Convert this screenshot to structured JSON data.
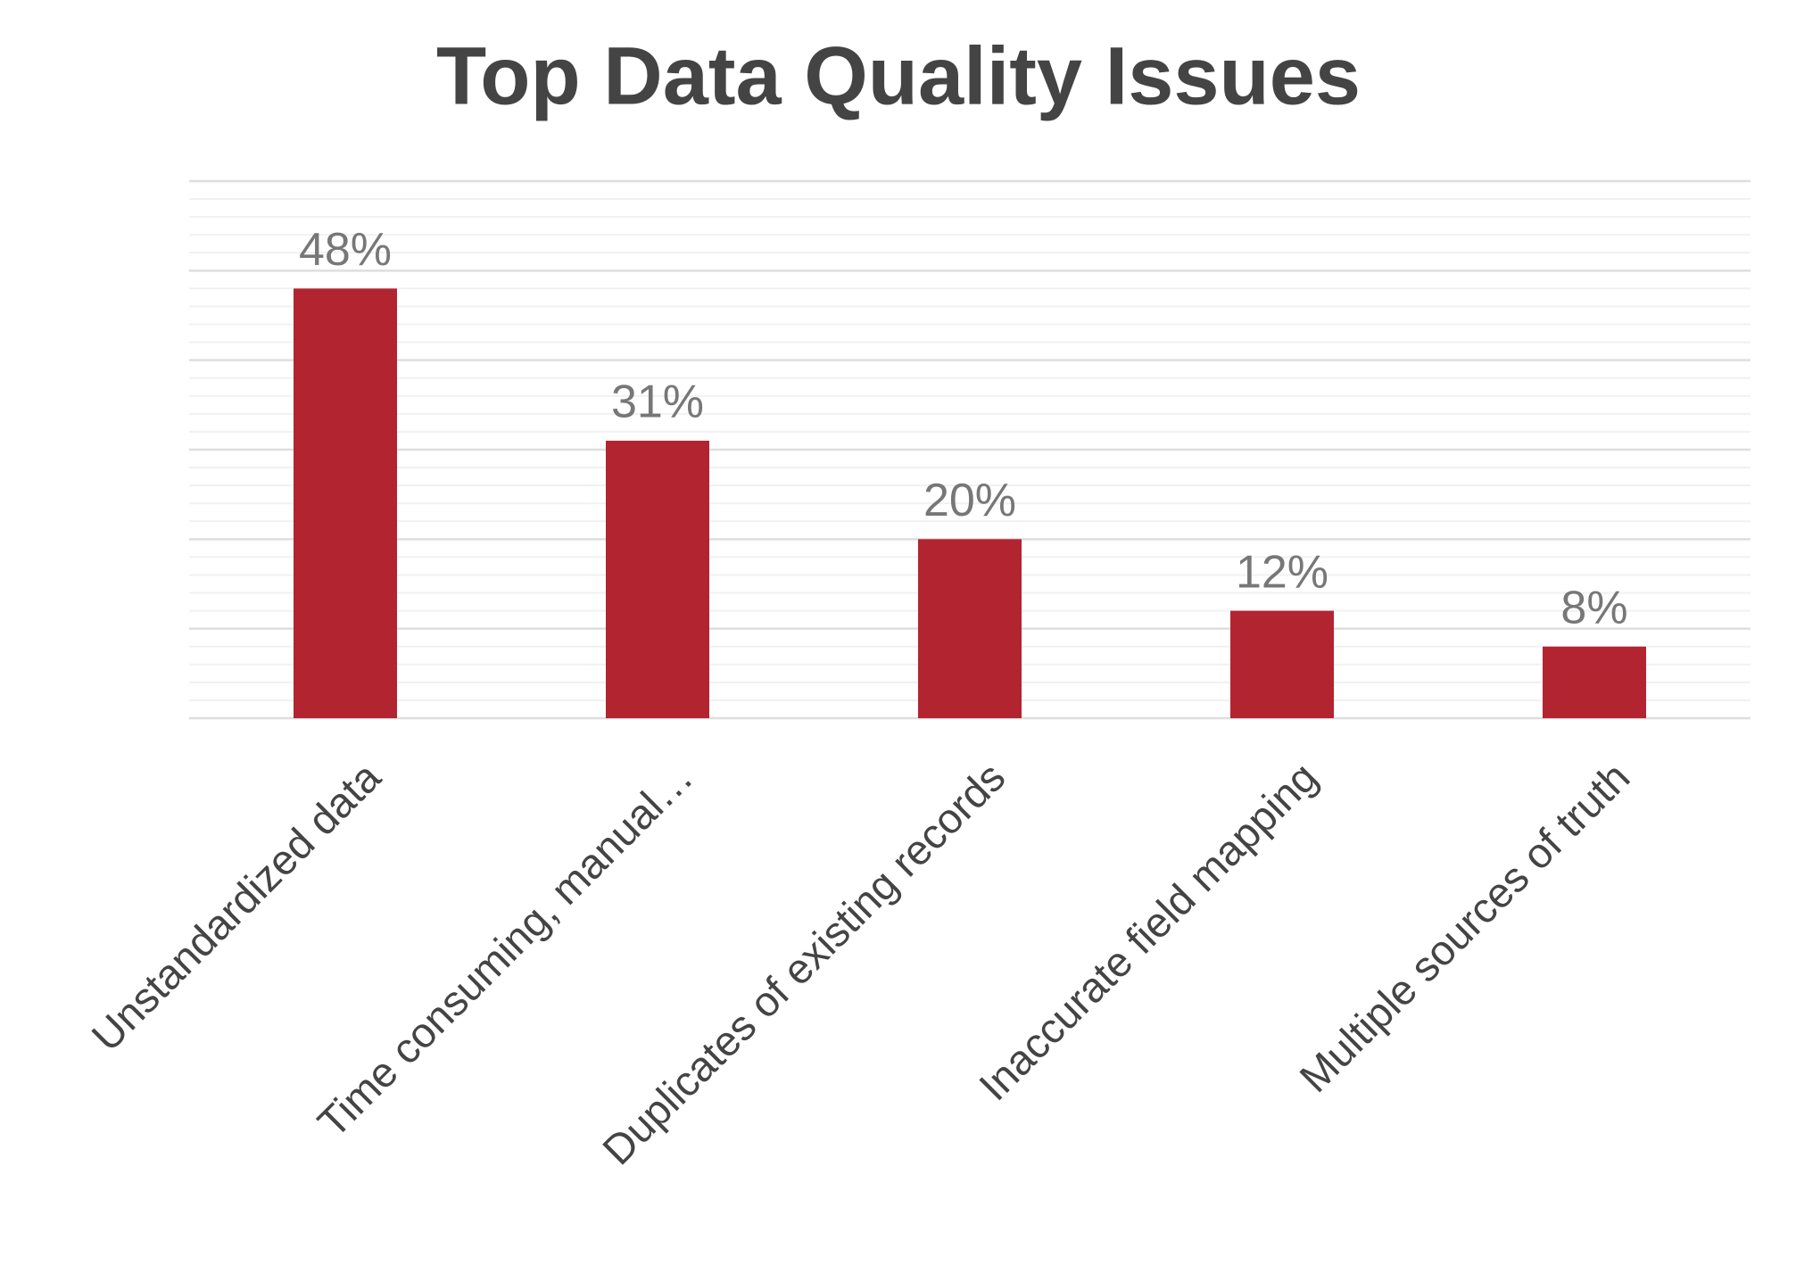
{
  "chart_data": {
    "type": "bar",
    "title": "Top Data Quality Issues",
    "categories": [
      "Unstandardized data",
      "Time consuming, manual…",
      "Duplicates of existing records",
      "Inaccurate field mapping",
      "Multiple sources of truth"
    ],
    "values": [
      48,
      31,
      20,
      12,
      8
    ],
    "value_labels": [
      "48%",
      "31%",
      "20%",
      "12%",
      "8%"
    ],
    "color": "#b22430",
    "ylim": [
      0,
      60
    ],
    "yticks": [
      0,
      10,
      20,
      30,
      40,
      50,
      60
    ],
    "grid": true
  }
}
